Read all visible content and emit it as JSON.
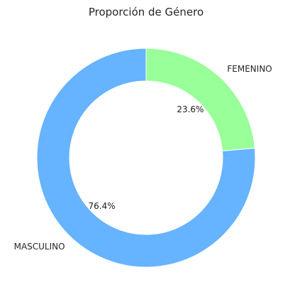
{
  "chart_data": {
    "type": "pie",
    "title": "Proporción de Género",
    "donut": true,
    "categories": [
      "FEMENINO",
      "MASCULINO"
    ],
    "values": [
      23.6,
      76.4
    ],
    "labels_pct": [
      "23.6%",
      "76.4%"
    ],
    "colors": [
      "#99ff99",
      "#66b3ff"
    ],
    "start_angle_deg": 90,
    "direction": "clockwise"
  }
}
